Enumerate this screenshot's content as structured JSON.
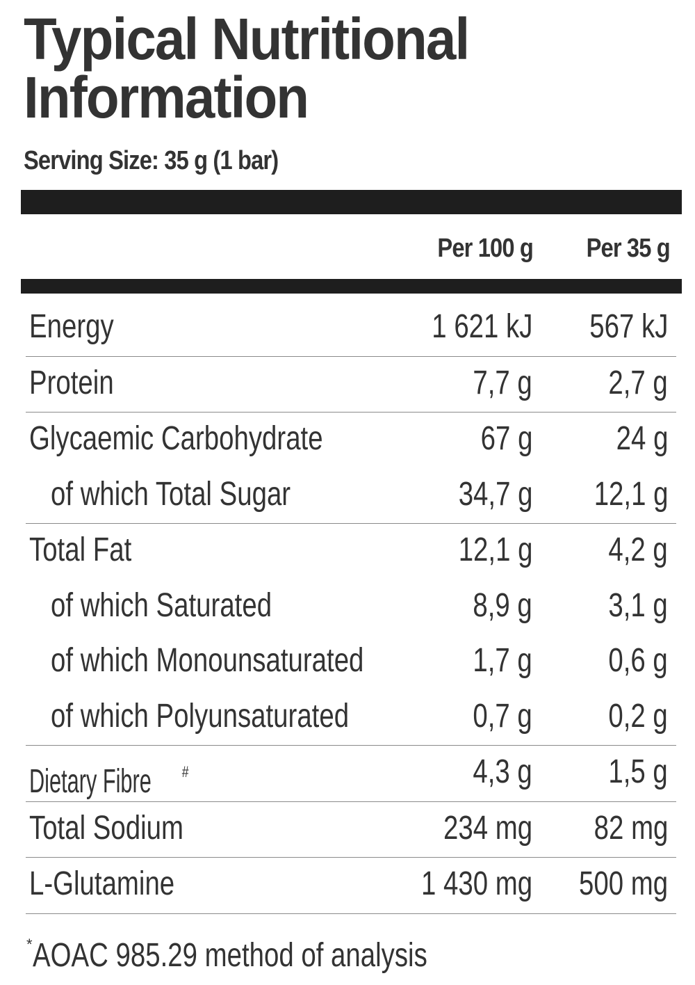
{
  "title": "Typical Nutritional Information",
  "title_line1": "Typical Nutritional",
  "title_line2": "Information",
  "serving_size": "Serving Size: 35 g (1 bar)",
  "columns": {
    "per_100g": "Per 100 g",
    "per_serving": "Per 35 g"
  },
  "rows": [
    {
      "label": "Energy",
      "per_100g": "1 621 kJ",
      "per_serving": "567 kJ",
      "indent": false
    },
    {
      "label": "Protein",
      "per_100g": "7,7 g",
      "per_serving": "2,7 g",
      "indent": false
    },
    {
      "label": "Glycaemic Carbohydrate",
      "per_100g": "67 g",
      "per_serving": "24 g",
      "indent": false
    },
    {
      "label": "of which Total Sugar",
      "per_100g": "34,7 g",
      "per_serving": "12,1 g",
      "indent": true
    },
    {
      "label": "Total Fat",
      "per_100g": "12,1 g",
      "per_serving": "4,2 g",
      "indent": false
    },
    {
      "label": "of which Saturated",
      "per_100g": "8,9 g",
      "per_serving": "3,1 g",
      "indent": true
    },
    {
      "label": "of which Monounsaturated",
      "per_100g": "1,7 g",
      "per_serving": "0,6 g",
      "indent": true
    },
    {
      "label": "of which Polyunsaturated",
      "per_100g": "0,7 g",
      "per_serving": "0,2 g",
      "indent": true
    },
    {
      "label": "Dietary Fibre",
      "label_marker": "#",
      "per_100g": "4,3 g",
      "per_serving": "1,5 g",
      "indent": false
    },
    {
      "label": "Total Sodium",
      "per_100g": "234 mg",
      "per_serving": "82 mg",
      "indent": false
    },
    {
      "label": "L-Glutamine",
      "per_100g": "1 430 mg",
      "per_serving": "500 mg",
      "indent": false
    }
  ],
  "footnote": {
    "marker": "*",
    "text": "AOAC 985.29 method of analysis"
  },
  "colors": {
    "text": "#333333",
    "bars": "#1e1e1e",
    "separator": "#8a8a8a"
  }
}
